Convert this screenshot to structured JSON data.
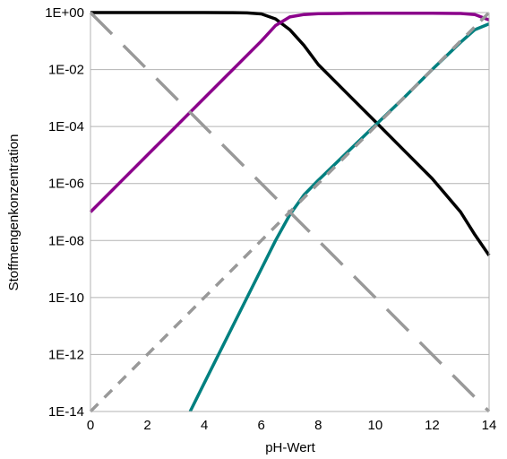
{
  "chart_data": {
    "type": "line",
    "xlabel": "pH-Wert",
    "ylabel": "Stoffmengenkonzentration",
    "xlim": [
      0,
      14
    ],
    "ylim_log10": [
      -14,
      0
    ],
    "y_scale": "log",
    "grid": "horizontal",
    "x_ticks": [
      "0",
      "2",
      "4",
      "6",
      "8",
      "10",
      "12",
      "14"
    ],
    "y_ticks": [
      "1E+00",
      "1E-02",
      "1E-04",
      "1E-06",
      "1E-08",
      "1E-10",
      "1E-12",
      "1E-14"
    ],
    "series": [
      {
        "color": "#000000",
        "style": "solid",
        "points": [
          [
            0,
            1
          ],
          [
            4,
            1
          ],
          [
            5,
            0.99
          ],
          [
            5.5,
            0.97
          ],
          [
            6,
            0.9
          ],
          [
            6.5,
            0.6
          ],
          [
            7,
            0.25
          ],
          [
            7.5,
            0.07
          ],
          [
            8,
            0.015
          ],
          [
            9,
            0.0015
          ],
          [
            10,
            0.00015
          ],
          [
            11,
            1.5e-05
          ],
          [
            12,
            1.5e-06
          ],
          [
            13,
            1e-07
          ],
          [
            13.5,
            1.6e-08
          ],
          [
            14,
            3e-09
          ]
        ]
      },
      {
        "color": "#8b008b",
        "style": "solid",
        "points": [
          [
            0,
            1e-07
          ],
          [
            1,
            1e-06
          ],
          [
            2,
            1e-05
          ],
          [
            3,
            0.0001
          ],
          [
            4,
            0.001
          ],
          [
            5,
            0.01
          ],
          [
            6,
            0.1
          ],
          [
            6.5,
            0.35
          ],
          [
            7,
            0.7
          ],
          [
            7.5,
            0.85
          ],
          [
            8,
            0.92
          ],
          [
            9,
            0.94
          ],
          [
            10,
            0.95
          ],
          [
            11,
            0.95
          ],
          [
            12,
            0.95
          ],
          [
            13,
            0.93
          ],
          [
            13.5,
            0.85
          ],
          [
            14,
            0.55
          ]
        ]
      },
      {
        "color": "#008080",
        "style": "solid",
        "points": [
          [
            3.5,
            1e-14
          ],
          [
            4,
            1e-13
          ],
          [
            5,
            1e-11
          ],
          [
            6,
            1e-09
          ],
          [
            6.5,
            1e-08
          ],
          [
            7,
            8e-08
          ],
          [
            7.5,
            4e-07
          ],
          [
            8,
            1.3e-06
          ],
          [
            9,
            1.2e-05
          ],
          [
            10,
            0.00011
          ],
          [
            11,
            0.001
          ],
          [
            12,
            0.01
          ],
          [
            13,
            0.09
          ],
          [
            13.5,
            0.25
          ],
          [
            14,
            0.4
          ]
        ]
      },
      {
        "color": "#999999",
        "style": "long-dash",
        "points": [
          [
            0,
            1
          ],
          [
            14,
            1e-14
          ]
        ]
      },
      {
        "color": "#999999",
        "style": "short-dash",
        "points": [
          [
            0,
            1e-14
          ],
          [
            14,
            1
          ]
        ]
      }
    ]
  }
}
